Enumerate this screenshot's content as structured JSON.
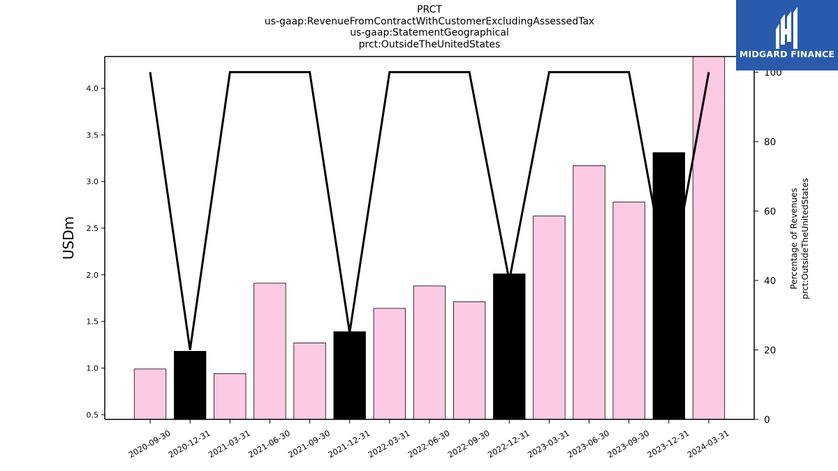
{
  "title_lines": [
    "PRCT",
    "us-gaap:RevenueFromContractWithCustomerExcludingAssessedTax",
    "us-gaap:StatementGeographical",
    "prct:OutsideTheUnitedStates"
  ],
  "logo": {
    "text": "MIDGARD FINANCE",
    "background": "#2a5aab"
  },
  "chart_data": {
    "type": "bar",
    "categories": [
      "2020-09-30",
      "2020-12-31",
      "2021-03-31",
      "2021-06-30",
      "2021-09-30",
      "2021-12-31",
      "2022-03-31",
      "2022-06-30",
      "2022-09-30",
      "2022-12-31",
      "2023-03-31",
      "2023-06-30",
      "2023-09-30",
      "2023-12-31",
      "2024-03-31"
    ],
    "values": [
      0.99,
      1.18,
      0.94,
      1.91,
      1.27,
      1.39,
      1.64,
      1.88,
      1.71,
      2.01,
      2.63,
      3.17,
      2.78,
      3.31,
      4.34
    ],
    "bar_colors": [
      "#fdcae3",
      "#000000",
      "#fdcae3",
      "#fdcae3",
      "#fdcae3",
      "#000000",
      "#fdcae3",
      "#fdcae3",
      "#fdcae3",
      "#000000",
      "#fdcae3",
      "#fdcae3",
      "#fdcae3",
      "#000000",
      "#fdcae3"
    ],
    "ylabel": "USDm",
    "ylim": [
      0.45,
      4.34
    ],
    "yticks": [
      "0.5",
      "1.0",
      "1.5",
      "2.0",
      "2.5",
      "3.0",
      "3.5",
      "4.0"
    ],
    "ytick_values": [
      0.5,
      1.0,
      1.5,
      2.0,
      2.5,
      3.0,
      3.5,
      4.0
    ],
    "line": {
      "values": [
        100,
        20,
        100,
        100,
        100,
        25,
        100,
        100,
        100,
        40,
        100,
        100,
        100,
        37,
        100
      ],
      "ylabel_lines": [
        "Percentage of Revenues",
        "prct:OutsideTheUnitedStates"
      ],
      "ylim": [
        0,
        104.5
      ],
      "yticks": [
        "0",
        "20",
        "40",
        "60",
        "80",
        "100"
      ],
      "ytick_values": [
        0,
        20,
        40,
        60,
        80,
        100
      ],
      "color": "#000000"
    },
    "grid": false
  }
}
